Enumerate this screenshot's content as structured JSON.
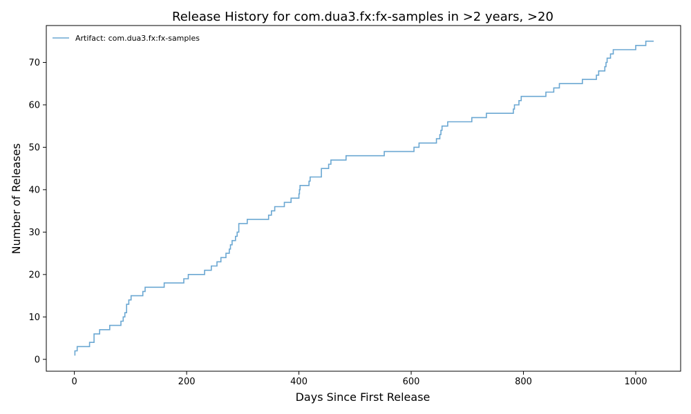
{
  "chart_data": {
    "type": "line",
    "title": "Release History for com.dua3.fx:fx-samples in >2 years, >20",
    "xlabel": "Days Since First Release",
    "ylabel": "Number of Releases",
    "xlim": [
      -50,
      1080
    ],
    "ylim": [
      -2.8,
      78.7
    ],
    "xticks": [
      0,
      200,
      400,
      600,
      800,
      1000
    ],
    "yticks": [
      0,
      10,
      20,
      30,
      40,
      50,
      60,
      70
    ],
    "grid": false,
    "legend_position": "top-left",
    "step": "post",
    "series": [
      {
        "name": "Artifact: com.dua3.fx:fx-samples",
        "color": "#6aa7d2",
        "x": [
          0,
          1,
          5,
          27,
          35,
          45,
          63,
          83,
          87,
          90,
          93,
          97,
          101,
          107,
          122,
          126,
          160,
          195,
          203,
          232,
          244,
          254,
          261,
          270,
          276,
          278,
          281,
          287,
          290,
          293,
          308,
          346,
          351,
          357,
          374,
          386,
          400,
          401,
          402,
          418,
          420,
          440,
          453,
          457,
          484,
          552,
          605,
          614,
          645,
          651,
          653,
          654,
          655,
          657,
          665,
          708,
          734,
          782,
          784,
          792,
          796,
          798,
          840,
          854,
          864,
          905,
          930,
          934,
          945,
          947,
          949,
          951,
          955,
          960,
          1000,
          1018
        ],
        "y": [
          1,
          2,
          3,
          4,
          6,
          7,
          8,
          9,
          10,
          11,
          13,
          14,
          15,
          15,
          16,
          17,
          18,
          19,
          20,
          21,
          22,
          23,
          24,
          25,
          26,
          27,
          28,
          29,
          30,
          32,
          33,
          34,
          35,
          36,
          37,
          38,
          39,
          40,
          41,
          42,
          43,
          45,
          46,
          47,
          48,
          49,
          50,
          51,
          52,
          53,
          54,
          54,
          55,
          55,
          56,
          57,
          58,
          59,
          60,
          61,
          62,
          62,
          63,
          64,
          65,
          66,
          67,
          68,
          69,
          70,
          71,
          71,
          72,
          73,
          74,
          75
        ],
        "x_end": 1032
      }
    ]
  }
}
